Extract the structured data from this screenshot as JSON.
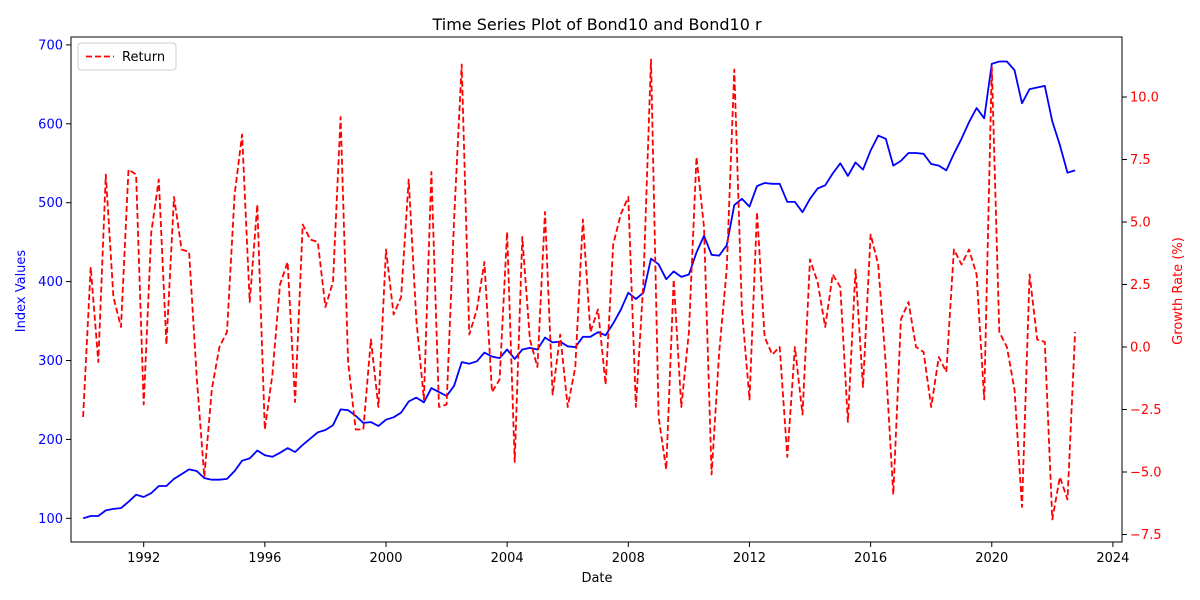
{
  "chart_data": {
    "type": "line",
    "title": "Time Series Plot of Bond10 and Bond10 r",
    "xlabel": "Date",
    "ylabel_left": "Index Values",
    "ylabel_right": "Growth Rate (%)",
    "xlim": [
      1989.6,
      2024.3
    ],
    "ylim_left": [
      70,
      710
    ],
    "ylim_right": [
      -7.8,
      12.4
    ],
    "x_ticks": [
      "1992",
      "1996",
      "2000",
      "2004",
      "2008",
      "2012",
      "2016",
      "2020",
      "2024"
    ],
    "y_ticks_left": [
      "100",
      "200",
      "300",
      "400",
      "500",
      "600",
      "700"
    ],
    "y_ticks_right": [
      "−7.5",
      "−5.0",
      "−2.5",
      "0.0",
      "2.5",
      "5.0",
      "7.5",
      "10.0"
    ],
    "legend": {
      "placement": "top-left",
      "entries": [
        "Return"
      ]
    },
    "grid": false,
    "colors": {
      "index": "#0000ff",
      "return": "#ff0000",
      "axis": "#000000"
    },
    "series": [
      {
        "axis": "left",
        "style": "solid",
        "color": "#0000ff",
        "x": [
          1990.0,
          1990.25,
          1990.5,
          1990.75,
          1991.0,
          1991.25,
          1991.5,
          1991.75,
          1992.0,
          1992.25,
          1992.5,
          1992.75,
          1993.0,
          1993.25,
          1993.5,
          1993.75,
          1994.0,
          1994.25,
          1994.5,
          1994.75,
          1995.0,
          1995.25,
          1995.5,
          1995.75,
          1996.0,
          1996.25,
          1996.5,
          1996.75,
          1997.0,
          1997.25,
          1997.5,
          1997.75,
          1998.0,
          1998.25,
          1998.5,
          1998.75,
          1999.0,
          1999.25,
          1999.5,
          1999.75,
          2000.0,
          2000.25,
          2000.5,
          2000.75,
          2001.0,
          2001.25,
          2001.5,
          2001.75,
          2002.0,
          2002.25,
          2002.5,
          2002.75,
          2003.0,
          2003.25,
          2003.5,
          2003.75,
          2004.0,
          2004.25,
          2004.5,
          2004.75,
          2005.0,
          2005.25,
          2005.5,
          2005.75,
          2006.0,
          2006.25,
          2006.5,
          2006.75,
          2007.0,
          2007.25,
          2007.5,
          2007.75,
          2008.0,
          2008.25,
          2008.5,
          2008.75,
          2009.0,
          2009.25,
          2009.5,
          2009.75,
          2010.0,
          2010.25,
          2010.5,
          2010.75,
          2011.0,
          2011.25,
          2011.5,
          2011.75,
          2012.0,
          2012.25,
          2012.5,
          2012.75,
          2013.0,
          2013.25,
          2013.5,
          2013.75,
          2014.0,
          2014.25,
          2014.5,
          2014.75,
          2015.0,
          2015.25,
          2015.5,
          2015.75,
          2016.0,
          2016.25,
          2016.5,
          2016.75,
          2017.0,
          2017.25,
          2017.5,
          2017.75,
          2018.0,
          2018.25,
          2018.5,
          2018.75,
          2019.0,
          2019.25,
          2019.5,
          2019.75,
          2020.0,
          2020.25,
          2020.5,
          2020.75,
          2021.0,
          2021.25,
          2021.5,
          2021.75,
          2022.0,
          2022.25,
          2022.5,
          2022.75
        ],
        "values": [
          100,
          103,
          103,
          110,
          112,
          113,
          121,
          130,
          127,
          132,
          141,
          141,
          150,
          156,
          162,
          160,
          151,
          149,
          149,
          150,
          160,
          173,
          176,
          186,
          180,
          178,
          183,
          189,
          184,
          193,
          201,
          209,
          212,
          218,
          238,
          237,
          230,
          221,
          222,
          217,
          225,
          228,
          234,
          248,
          253,
          247,
          265,
          260,
          255,
          268,
          298,
          296,
          299,
          310,
          305,
          303,
          314,
          302,
          314,
          316,
          314,
          329,
          323,
          324,
          318,
          317,
          330,
          330,
          336,
          332,
          347,
          364,
          386,
          378,
          386,
          429,
          422,
          403,
          413,
          406,
          409,
          437,
          458,
          434,
          433,
          446,
          497,
          505,
          495,
          521,
          525,
          524,
          524,
          501,
          501,
          488,
          505,
          518,
          522,
          537,
          550,
          534,
          551,
          542,
          566,
          585,
          581,
          547,
          553,
          563,
          563,
          562,
          549,
          547,
          541,
          562,
          581,
          602,
          620,
          607,
          676,
          679,
          679,
          668,
          626,
          644,
          646,
          648,
          603,
          573,
          538,
          541
        ]
      },
      {
        "name": "Return",
        "axis": "right",
        "style": "dashed",
        "color": "#ff0000",
        "x": [
          1990.0,
          1990.25,
          1990.5,
          1990.75,
          1991.0,
          1991.25,
          1991.5,
          1991.75,
          1992.0,
          1992.25,
          1992.5,
          1992.75,
          1993.0,
          1993.25,
          1993.5,
          1993.75,
          1994.0,
          1994.25,
          1994.5,
          1994.75,
          1995.0,
          1995.25,
          1995.5,
          1995.75,
          1996.0,
          1996.25,
          1996.5,
          1996.75,
          1997.0,
          1997.25,
          1997.5,
          1997.75,
          1998.0,
          1998.25,
          1998.5,
          1998.75,
          1999.0,
          1999.25,
          1999.5,
          1999.75,
          2000.0,
          2000.25,
          2000.5,
          2000.75,
          2001.0,
          2001.25,
          2001.5,
          2001.75,
          2002.0,
          2002.25,
          2002.5,
          2002.75,
          2003.0,
          2003.25,
          2003.5,
          2003.75,
          2004.0,
          2004.25,
          2004.5,
          2004.75,
          2005.0,
          2005.25,
          2005.5,
          2005.75,
          2006.0,
          2006.25,
          2006.5,
          2006.75,
          2007.0,
          2007.25,
          2007.5,
          2007.75,
          2008.0,
          2008.25,
          2008.5,
          2008.75,
          2009.0,
          2009.25,
          2009.5,
          2009.75,
          2010.0,
          2010.25,
          2010.5,
          2010.75,
          2011.0,
          2011.25,
          2011.5,
          2011.75,
          2012.0,
          2012.25,
          2012.5,
          2012.75,
          2013.0,
          2013.25,
          2013.5,
          2013.75,
          2014.0,
          2014.25,
          2014.5,
          2014.75,
          2015.0,
          2015.25,
          2015.5,
          2015.75,
          2016.0,
          2016.25,
          2016.5,
          2016.75,
          2017.0,
          2017.25,
          2017.5,
          2017.75,
          2018.0,
          2018.25,
          2018.5,
          2018.75,
          2019.0,
          2019.25,
          2019.5,
          2019.75,
          2020.0,
          2020.25,
          2020.5,
          2020.75,
          2021.0,
          2021.25,
          2021.5,
          2021.75,
          2022.0,
          2022.25,
          2022.5,
          2022.75
        ],
        "values": [
          -2.8,
          3.2,
          -0.6,
          6.9,
          2.0,
          0.8,
          7.1,
          6.9,
          -2.3,
          4.6,
          6.7,
          0.1,
          6.0,
          3.9,
          3.8,
          -1.2,
          -5.2,
          -1.7,
          0.0,
          0.6,
          6.1,
          8.5,
          1.8,
          5.7,
          -3.3,
          -1.1,
          2.5,
          3.4,
          -2.2,
          4.9,
          4.3,
          4.2,
          1.6,
          2.6,
          9.2,
          -0.6,
          -3.3,
          -3.3,
          0.3,
          -2.4,
          3.9,
          1.3,
          2.0,
          6.7,
          1.1,
          -2.1,
          7.0,
          -2.4,
          -2.3,
          5.1,
          11.3,
          0.5,
          1.5,
          3.4,
          -1.8,
          -1.3,
          4.6,
          -4.6,
          4.4,
          0.3,
          -0.8,
          5.4,
          -1.9,
          0.5,
          -2.4,
          -0.8,
          5.1,
          0.6,
          1.5,
          -1.5,
          4.1,
          5.3,
          6.0,
          -2.4,
          2.6,
          11.5,
          -2.8,
          -4.9,
          2.7,
          -2.4,
          0.6,
          7.6,
          4.8,
          -5.1,
          -0.2,
          3.1,
          11.1,
          1.5,
          -2.1,
          5.4,
          0.4,
          -0.3,
          0.0,
          -4.4,
          0.0,
          -2.7,
          3.5,
          2.6,
          0.8,
          2.9,
          2.4,
          -3.0,
          3.1,
          -1.6,
          4.5,
          3.3,
          -0.7,
          -5.9,
          1.1,
          1.8,
          0.0,
          -0.2,
          -2.4,
          -0.4,
          -1.0,
          3.9,
          3.3,
          3.9,
          2.9,
          -2.1,
          11.2,
          0.6,
          0.0,
          -1.7,
          -6.4,
          2.9,
          0.3,
          0.2,
          -6.9,
          -5.2,
          -6.1,
          0.6
        ]
      }
    ]
  }
}
